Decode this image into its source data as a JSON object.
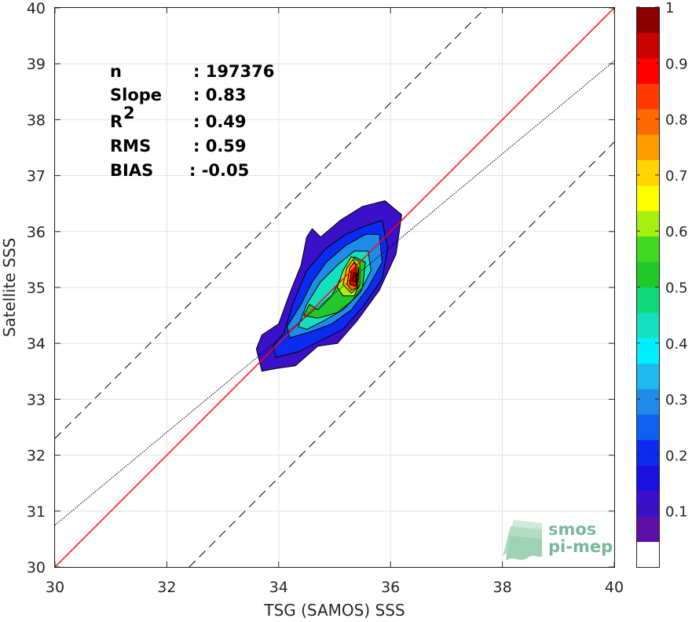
{
  "chart_data": {
    "type": "heatmap",
    "subtype": "density contour scatter",
    "xlabel": "TSG (SAMOS) SSS",
    "ylabel": "Satellite SSS",
    "xlim": [
      30,
      40
    ],
    "ylim": [
      30,
      40
    ],
    "x_ticks": [
      "30",
      "32",
      "34",
      "36",
      "38",
      "40"
    ],
    "y_ticks": [
      "30",
      "31",
      "32",
      "33",
      "34",
      "35",
      "36",
      "37",
      "38",
      "39",
      "40"
    ],
    "grid": true,
    "stats": [
      {
        "label": "n",
        "value": ": 197376"
      },
      {
        "label": "Slope",
        "value": ": 0.83"
      },
      {
        "label": "R",
        "sup": "2",
        "value": ": 0.49"
      },
      {
        "label": "RMS",
        "value": ": 0.59"
      },
      {
        "label": "BIAS",
        "value": ": -0.05"
      }
    ],
    "reference_lines": [
      {
        "kind": "identity",
        "slope": 1,
        "intercept": 0,
        "color": "#ff0000",
        "style": "solid"
      },
      {
        "kind": "fit",
        "slope": 0.83,
        "intercept": 5.85,
        "color": "#000000",
        "style": "dotted"
      },
      {
        "kind": "upper-bound",
        "slope": 1,
        "intercept": 2.3,
        "color": "#000000",
        "style": "dashed"
      },
      {
        "kind": "lower-bound",
        "slope": 1,
        "intercept": -2.4,
        "color": "#000000",
        "style": "dashed"
      }
    ],
    "contours": [
      {
        "level": 0.1,
        "color": "#3a10c8",
        "points": [
          [
            33.7,
            33.5
          ],
          [
            33.6,
            33.9
          ],
          [
            33.7,
            34.15
          ],
          [
            34.0,
            34.35
          ],
          [
            34.2,
            34.9
          ],
          [
            34.4,
            35.4
          ],
          [
            34.5,
            35.9
          ],
          [
            34.6,
            36.05
          ],
          [
            34.75,
            35.9
          ],
          [
            35.1,
            36.2
          ],
          [
            35.5,
            36.45
          ],
          [
            35.9,
            36.55
          ],
          [
            36.2,
            36.3
          ],
          [
            36.1,
            35.6
          ],
          [
            35.8,
            34.95
          ],
          [
            35.4,
            34.4
          ],
          [
            35.05,
            34.0
          ],
          [
            34.7,
            33.95
          ],
          [
            34.3,
            33.6
          ],
          [
            33.95,
            33.55
          ]
        ]
      },
      {
        "level": 0.2,
        "color": "#0b2cf0",
        "points": [
          [
            33.95,
            33.75
          ],
          [
            33.9,
            33.95
          ],
          [
            34.1,
            34.2
          ],
          [
            34.25,
            34.7
          ],
          [
            34.5,
            35.3
          ],
          [
            34.85,
            35.7
          ],
          [
            35.2,
            35.95
          ],
          [
            35.55,
            36.1
          ],
          [
            35.85,
            36.2
          ],
          [
            35.95,
            35.7
          ],
          [
            35.85,
            35.15
          ],
          [
            35.5,
            34.65
          ],
          [
            35.15,
            34.25
          ],
          [
            34.75,
            34.05
          ],
          [
            34.35,
            33.85
          ]
        ]
      },
      {
        "level": 0.3,
        "color": "#1e8be8",
        "points": [
          [
            34.2,
            34.1
          ],
          [
            34.15,
            34.3
          ],
          [
            34.4,
            34.7
          ],
          [
            34.6,
            35.1
          ],
          [
            34.85,
            35.45
          ],
          [
            35.2,
            35.75
          ],
          [
            35.55,
            35.95
          ],
          [
            35.8,
            35.95
          ],
          [
            35.85,
            35.45
          ],
          [
            35.6,
            35.0
          ],
          [
            35.3,
            34.6
          ],
          [
            34.95,
            34.35
          ],
          [
            34.55,
            34.2
          ]
        ]
      },
      {
        "level": 0.4,
        "color": "#14e0c0",
        "points": [
          [
            34.35,
            34.3
          ],
          [
            34.5,
            34.7
          ],
          [
            34.75,
            35.1
          ],
          [
            35.05,
            35.4
          ],
          [
            35.35,
            35.65
          ],
          [
            35.6,
            35.65
          ],
          [
            35.65,
            35.3
          ],
          [
            35.45,
            34.9
          ],
          [
            35.15,
            34.6
          ],
          [
            34.8,
            34.4
          ],
          [
            34.5,
            34.25
          ]
        ]
      },
      {
        "level": 0.5,
        "color": "#22c82a",
        "points": [
          [
            34.45,
            34.5
          ],
          [
            34.55,
            34.7
          ],
          [
            34.7,
            34.6
          ],
          [
            34.95,
            34.85
          ],
          [
            35.15,
            35.25
          ],
          [
            35.35,
            35.55
          ],
          [
            35.55,
            35.45
          ],
          [
            35.5,
            35.0
          ],
          [
            35.3,
            34.75
          ],
          [
            35.05,
            34.55
          ],
          [
            34.7,
            34.45
          ]
        ]
      },
      {
        "level": 0.6,
        "color": "#a4f010",
        "points": [
          [
            35.05,
            35.0
          ],
          [
            35.15,
            35.3
          ],
          [
            35.3,
            35.55
          ],
          [
            35.45,
            35.45
          ],
          [
            35.45,
            35.05
          ],
          [
            35.35,
            34.85
          ],
          [
            35.15,
            34.85
          ]
        ]
      },
      {
        "level": 0.7,
        "color": "#ffc400",
        "points": [
          [
            35.15,
            35.05
          ],
          [
            35.22,
            35.35
          ],
          [
            35.33,
            35.5
          ],
          [
            35.43,
            35.35
          ],
          [
            35.42,
            35.0
          ],
          [
            35.3,
            34.9
          ]
        ]
      },
      {
        "level": 0.8,
        "color": "#ff6a00",
        "points": [
          [
            35.22,
            35.05
          ],
          [
            35.27,
            35.35
          ],
          [
            35.35,
            35.45
          ],
          [
            35.42,
            35.3
          ],
          [
            35.4,
            35.0
          ],
          [
            35.3,
            34.95
          ]
        ]
      },
      {
        "level": 0.9,
        "color": "#e80000",
        "points": [
          [
            35.27,
            35.05
          ],
          [
            35.3,
            35.3
          ],
          [
            35.37,
            35.37
          ],
          [
            35.41,
            35.2
          ],
          [
            35.38,
            35.02
          ]
        ]
      },
      {
        "level": 1.0,
        "color": "#b00000",
        "points": [
          [
            35.32,
            35.12
          ],
          [
            35.34,
            35.27
          ],
          [
            35.38,
            35.25
          ],
          [
            35.38,
            35.1
          ]
        ]
      }
    ],
    "colorbar": {
      "range": [
        0,
        1
      ],
      "tick_labels": [
        "0.1",
        "0.2",
        "0.3",
        "0.4",
        "0.5",
        "0.6",
        "0.7",
        "0.8",
        "0.9",
        "1"
      ],
      "tick_values": [
        0.1,
        0.2,
        0.3,
        0.4,
        0.5,
        0.6,
        0.7,
        0.8,
        0.9,
        1
      ],
      "colors": [
        "#ffffff",
        "#5c10a8",
        "#3a10c8",
        "#1a10e0",
        "#0b2cf0",
        "#1060f0",
        "#1e8be8",
        "#1fb8ee",
        "#00f0ff",
        "#14e0c0",
        "#10d878",
        "#22c82a",
        "#40d820",
        "#a4f010",
        "#ffff00",
        "#ffd400",
        "#ff9c00",
        "#ff6a00",
        "#ff3a00",
        "#ff0000",
        "#c80000",
        "#8c0000"
      ]
    }
  },
  "logo": {
    "line1": "smos",
    "line2": "pi-mep",
    "colors": {
      "text": "#7bb89a",
      "waves": "#9fd2b4"
    }
  }
}
